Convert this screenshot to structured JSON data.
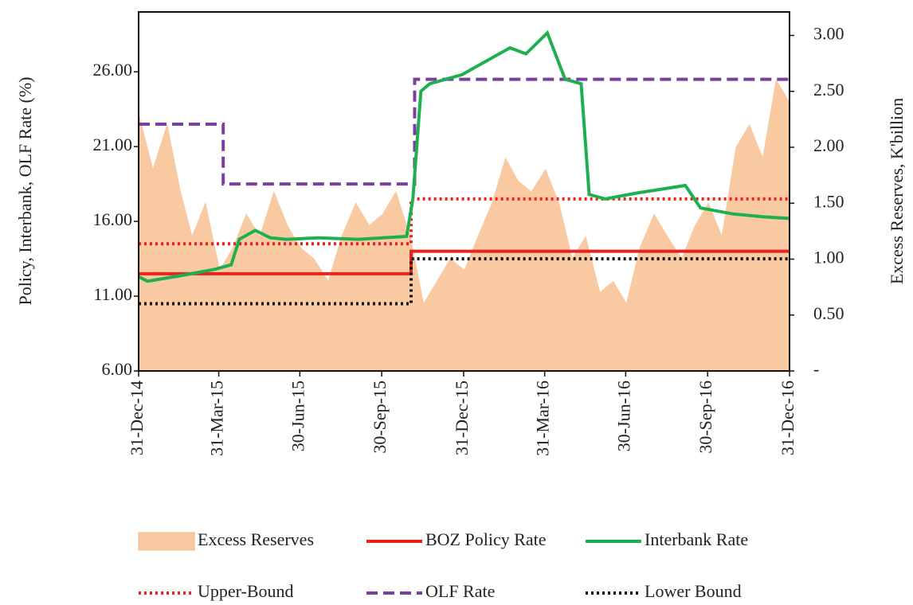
{
  "chart_data": {
    "type": "line",
    "ylabel": "Policy, Interbank, OLF Rate (%)",
    "y2label": "Excess Reserves, K'billion",
    "xlim": [
      "2014-12-31",
      "2016-12-31"
    ],
    "xticks": [
      {
        "value": "2014-12-31",
        "label": "31-Dec-14"
      },
      {
        "value": "2015-03-31",
        "label": "31-Mar-15"
      },
      {
        "value": "2015-06-30",
        "label": "30-Jun-15"
      },
      {
        "value": "2015-09-30",
        "label": "30-Sep-15"
      },
      {
        "value": "2015-12-31",
        "label": "31-Dec-15"
      },
      {
        "value": "2016-03-31",
        "label": "31-Mar-16"
      },
      {
        "value": "2016-06-30",
        "label": "30-Jun-16"
      },
      {
        "value": "2016-09-30",
        "label": "30-Sep-16"
      },
      {
        "value": "2016-12-31",
        "label": "31-Dec-16"
      }
    ],
    "ylim": [
      6,
      30
    ],
    "yticks": [
      {
        "value": 6,
        "label": "6.00"
      },
      {
        "value": 11,
        "label": "11.00"
      },
      {
        "value": 16,
        "label": "16.00"
      },
      {
        "value": 21,
        "label": "21.00"
      },
      {
        "value": 26,
        "label": "26.00"
      }
    ],
    "y2lim": [
      0,
      3.21
    ],
    "y2ticks": [
      {
        "value": 0,
        "label": "-"
      },
      {
        "value": 0.5,
        "label": "0.50"
      },
      {
        "value": 1,
        "label": "1.00"
      },
      {
        "value": 1.5,
        "label": "1.50"
      },
      {
        "value": 2,
        "label": "2.00"
      },
      {
        "value": 2.5,
        "label": "2.50"
      },
      {
        "value": 3,
        "label": "3.00"
      }
    ],
    "series": [
      {
        "name": "Excess Reserves",
        "color": "#f9c9a2",
        "kind": "area",
        "axis": "y2",
        "x": [
          "2014-12-31",
          "2015-01-16",
          "2015-02-01",
          "2015-02-16",
          "2015-03-01",
          "2015-03-16",
          "2015-04-01",
          "2015-04-16",
          "2015-05-01",
          "2015-05-16",
          "2015-06-01",
          "2015-06-16",
          "2015-07-01",
          "2015-07-16",
          "2015-08-01",
          "2015-08-16",
          "2015-09-01",
          "2015-09-16",
          "2015-10-01",
          "2015-10-16",
          "2015-11-01",
          "2015-11-16",
          "2015-12-01",
          "2015-12-16",
          "2016-01-01",
          "2016-01-16",
          "2016-02-01",
          "2016-02-16",
          "2016-03-01",
          "2016-03-16",
          "2016-04-01",
          "2016-04-16",
          "2016-05-01",
          "2016-05-16",
          "2016-06-01",
          "2016-06-16",
          "2016-07-01",
          "2016-07-16",
          "2016-08-01",
          "2016-08-16",
          "2016-09-01",
          "2016-09-16",
          "2016-10-01",
          "2016-10-16",
          "2016-11-01",
          "2016-11-16",
          "2016-12-01",
          "2016-12-16",
          "2016-12-31"
        ],
        "values": [
          2.3,
          1.8,
          2.2,
          1.6,
          1.2,
          1.5,
          0.9,
          1.1,
          1.4,
          1.2,
          1.6,
          1.3,
          1.1,
          1.0,
          0.8,
          1.2,
          1.5,
          1.3,
          1.4,
          1.6,
          1.2,
          0.6,
          0.8,
          1.0,
          0.9,
          1.2,
          1.5,
          1.9,
          1.7,
          1.6,
          1.8,
          1.5,
          1.0,
          1.2,
          0.7,
          0.8,
          0.6,
          1.1,
          1.4,
          1.2,
          1.0,
          1.3,
          1.5,
          1.2,
          2.0,
          2.2,
          1.9,
          2.6,
          2.4
        ]
      },
      {
        "name": "BOZ Policy Rate",
        "color": "#e8231f",
        "kind": "step",
        "dash": "solid",
        "x": [
          "2014-12-31",
          "2015-11-02",
          "2016-12-31"
        ],
        "values": [
          12.5,
          14,
          14
        ]
      },
      {
        "name": "Interbank Rate",
        "color": "#1eb050",
        "kind": "line",
        "dash": "solid",
        "x": [
          "2014-12-31",
          "2015-01-10",
          "2015-02-19",
          "2015-03-27",
          "2015-04-14",
          "2015-04-23",
          "2015-05-11",
          "2015-05-28",
          "2015-06-15",
          "2015-07-21",
          "2015-09-04",
          "2015-10-28",
          "2015-11-04",
          "2015-11-13",
          "2015-11-23",
          "2015-12-29",
          "2016-02-21",
          "2016-03-10",
          "2016-04-03",
          "2016-04-23",
          "2016-05-11",
          "2016-05-20",
          "2016-06-07",
          "2016-07-13",
          "2016-09-05",
          "2016-09-22",
          "2016-10-28",
          "2016-12-03",
          "2016-12-31"
        ],
        "values": [
          12.3,
          12.0,
          12.4,
          12.8,
          13.1,
          14.8,
          15.4,
          14.9,
          14.8,
          14.9,
          14.8,
          15.0,
          17.5,
          24.7,
          25.2,
          25.8,
          27.6,
          27.2,
          28.6,
          25.5,
          25.2,
          17.8,
          17.5,
          17.9,
          18.4,
          16.9,
          16.5,
          16.3,
          16.2
        ]
      },
      {
        "name": "Upper-Bound",
        "color": "#e8231f",
        "kind": "step",
        "dash": "dotted",
        "x": [
          "2014-12-31",
          "2015-11-02",
          "2016-12-31"
        ],
        "values": [
          14.5,
          17.5,
          17.5
        ]
      },
      {
        "name": "OLF Rate",
        "color": "#7b3fa0",
        "kind": "step",
        "dash": "dashed",
        "x": [
          "2014-12-31",
          "2015-04-05",
          "2015-11-06",
          "2016-12-31"
        ],
        "values": [
          22.5,
          18.5,
          25.5,
          25.5
        ]
      },
      {
        "name": "Lower Bound",
        "color": "#111111",
        "kind": "step",
        "dash": "dotted",
        "x": [
          "2014-12-31",
          "2015-11-02",
          "2016-12-31"
        ],
        "values": [
          10.5,
          13.5,
          13.5
        ]
      }
    ]
  }
}
